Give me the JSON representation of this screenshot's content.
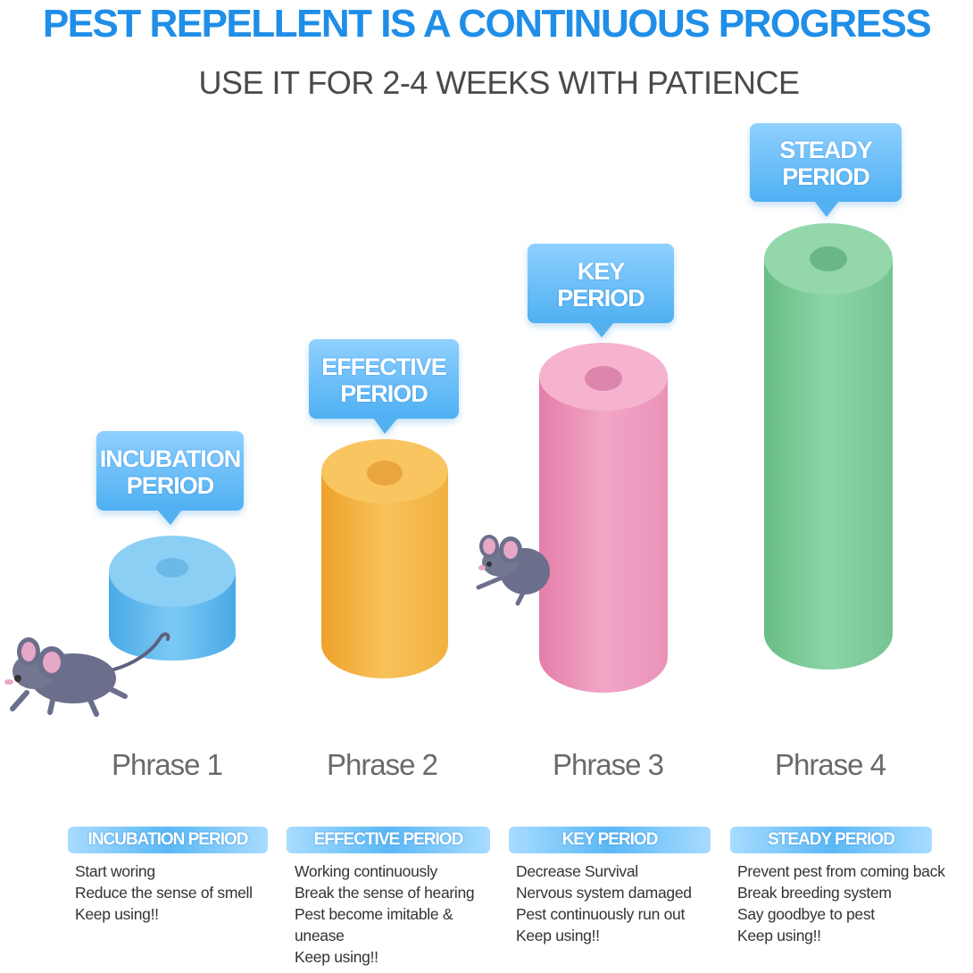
{
  "header": {
    "title": "PEST REPELLENT IS A CONTINUOUS PROGRESS",
    "subtitle": "USE IT FOR 2-4 WEEKS WITH PATIENCE"
  },
  "phases": [
    {
      "bubble_line1": "INCUBATION",
      "bubble_line2": "PERIOD",
      "label": "Phrase 1",
      "tag": "INCUBATION PERIOD",
      "lines": [
        "Start woring",
        "Reduce the sense of smell",
        "Keep using!!"
      ],
      "color": "#5ab8ee"
    },
    {
      "bubble_line1": "EFFECTIVE",
      "bubble_line2": "PERIOD",
      "label": "Phrase 2",
      "tag": "EFFECTIVE PERIOD",
      "lines": [
        "Working continuously",
        "Break the sense of hearing",
        "Pest become imitable &",
        "unease",
        "Keep using!!"
      ],
      "color": "#f5b342"
    },
    {
      "bubble_line1": "KEY",
      "bubble_line2": "PERIOD",
      "label": "Phrase 3",
      "tag": "KEY PERIOD",
      "lines": [
        "Decrease Survival",
        "Nervous system damaged",
        "Pest continuously run out",
        "Keep using!!"
      ],
      "color": "#ec8fb4"
    },
    {
      "bubble_line1": "STEADY",
      "bubble_line2": "PERIOD",
      "label": "Phrase 4",
      "tag": "STEADY PERIOD",
      "lines": [
        "Prevent pest from coming back",
        "Break breeding system",
        "Say goodbye to pest",
        "Keep using!!"
      ],
      "color": "#7ccb96"
    }
  ],
  "colors": {
    "title": "#1f8ee8",
    "bubble": "#5ab8f5",
    "mouse": "#6b6f8c"
  }
}
